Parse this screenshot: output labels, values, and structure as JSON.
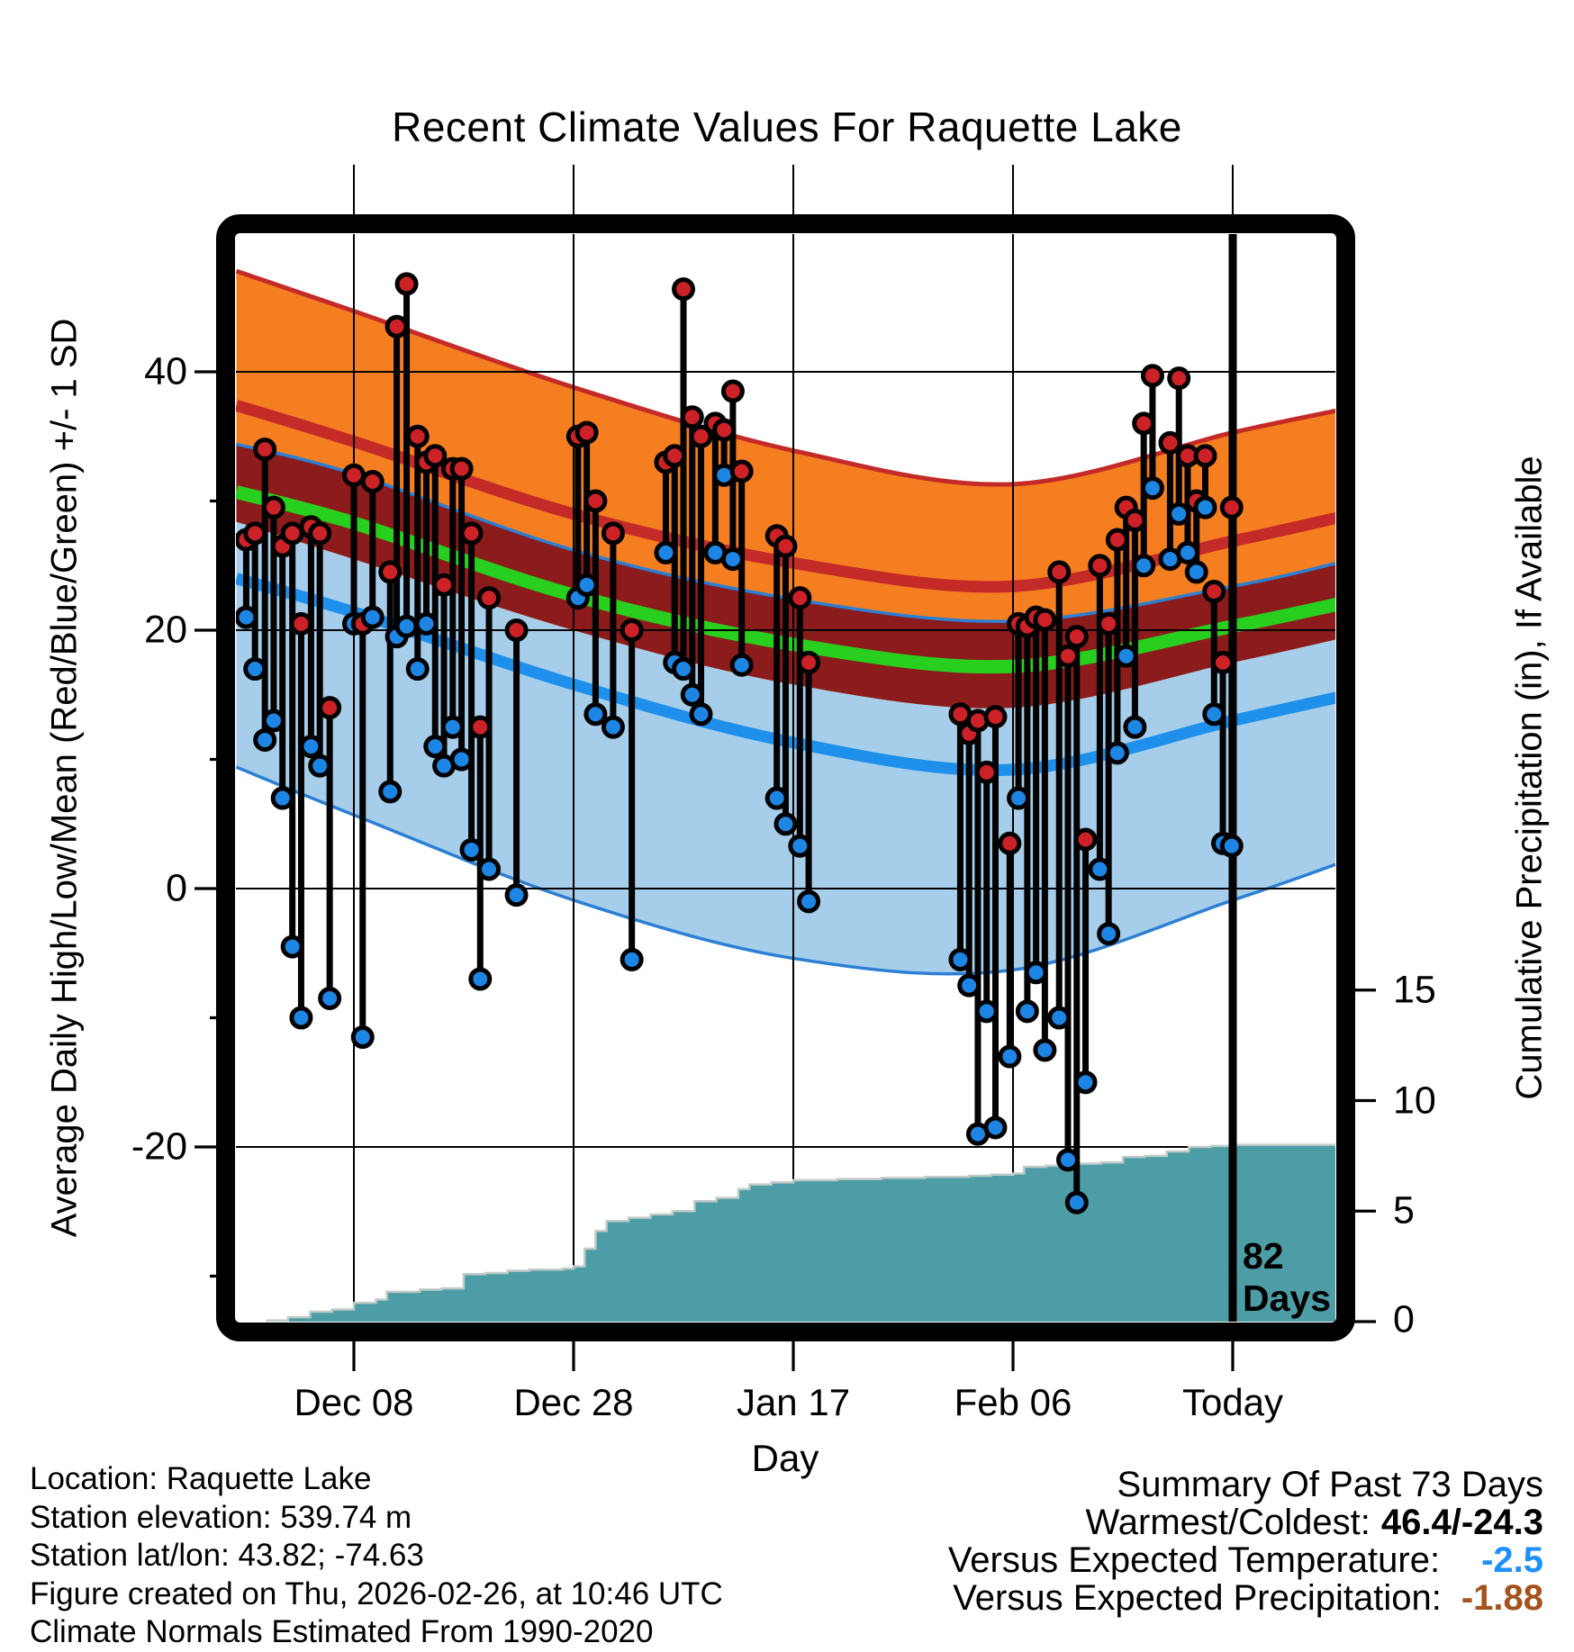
{
  "title": "Recent Climate Values For Raquette Lake",
  "axes": {
    "left_label": "Average Daily High/Low/Mean (Red/Blue/Green) +/- 1 SD",
    "right_label": "Cumulative Precipitation (in), If Available",
    "x_label": "Day",
    "x_ticks": [
      "Dec 08",
      "Dec 28",
      "Jan 17",
      "Feb 06",
      "Today"
    ],
    "left_ticks": [
      "40",
      "20",
      "0",
      "-20"
    ],
    "right_ticks": [
      "15",
      "10",
      "5",
      "0"
    ]
  },
  "annotations": {
    "days_count": "82",
    "days_word": "Days"
  },
  "footer": {
    "lines": [
      "Location: Raquette Lake",
      "Station elevation: 539.74 m",
      "Station lat/lon: 43.82; -74.63",
      "Figure created on Thu, 2026-02-26, at 10:46 UTC",
      "Climate Normals Estimated From 1990-2020"
    ]
  },
  "summary": {
    "title": "Summary Of Past 73 Days",
    "warmest_label": "Warmest/Coldest:",
    "warmest_value": "46.4/-24.3",
    "temp_label": "Versus Expected Temperature:",
    "temp_value": "-2.5",
    "precip_label": "Versus Expected Precipitation:",
    "precip_value": "-1.88"
  },
  "colors": {
    "orange_band": "#F57E20",
    "red_edge": "#C42A28",
    "high_mean_line": "#C42A28",
    "maroon_overlap": "#8C1B1B",
    "mean_green_line": "#28CF1F",
    "light_blue_band": "#A6CEEA",
    "blue_edge": "#2B7FD4",
    "low_mean_line": "#1E8FEA",
    "precip_fill": "#4C9DA6",
    "precip_edge": "#C2CBC8",
    "dot_high": "#CC2127",
    "dot_low": "#1D86E5",
    "stem": "#000000",
    "grid": "#000000",
    "summary_temp_value": "#1E90FF",
    "summary_precip_value": "#A5521D"
  },
  "chart_data": {
    "type": "line",
    "description": "Climate normals bands (high/low/mean +/-1 SD), daily observed high-low stems, and cumulative precipitation area. Day 0 = Dec 08; Today = day 80 (Feb 26).",
    "x_axis": {
      "label": "Day",
      "tick_days": [
        0,
        20,
        40,
        60,
        80
      ],
      "tick_labels": [
        "Dec 08",
        "Dec 28",
        "Jan 17",
        "Feb 06",
        "Today"
      ],
      "domain_days": [
        -10.7,
        89.5
      ]
    },
    "temp_axis": {
      "ticks": [
        40,
        20,
        0,
        -20
      ],
      "minor_ticks": [
        30,
        10,
        -10,
        -30
      ],
      "range_f": [
        -33.5,
        50.7
      ]
    },
    "precip_axis": {
      "ticks": [
        15,
        10,
        5,
        0
      ],
      "unit": "in"
    },
    "today_day": 80,
    "normals": {
      "anchor_days": [
        -10.7,
        0,
        20,
        40,
        60,
        80,
        89.5
      ],
      "series": [
        {
          "name": "high_plus_sd",
          "values": [
            47.8,
            44.7,
            38.8,
            33.9,
            31.3,
            35.3,
            37.0
          ]
        },
        {
          "name": "high_mean",
          "values": [
            37.4,
            34.6,
            29.0,
            25.2,
            23.4,
            26.9,
            28.7
          ]
        },
        {
          "name": "low_plus_sd",
          "values": [
            34.4,
            32.1,
            26.2,
            22.4,
            20.7,
            23.4,
            25.2
          ]
        },
        {
          "name": "mean",
          "values": [
            30.7,
            28.3,
            22.7,
            18.9,
            17.2,
            20.3,
            22.0
          ]
        },
        {
          "name": "high_minus_sd",
          "values": [
            28.4,
            25.5,
            20.0,
            15.8,
            14.0,
            17.5,
            19.3
          ]
        },
        {
          "name": "low_mean",
          "values": [
            24.0,
            21.4,
            15.8,
            11.3,
            9.2,
            13.0,
            14.8
          ]
        },
        {
          "name": "low_minus_sd",
          "values": [
            9.4,
            5.7,
            -0.9,
            -5.4,
            -6.3,
            -0.9,
            1.9
          ]
        }
      ]
    },
    "daily_stems": [
      {
        "day": -9.8,
        "high": 27.0,
        "low": 21.0
      },
      {
        "day": -9.0,
        "high": 27.5,
        "low": 17.0
      },
      {
        "day": -8.1,
        "high": 34.0,
        "low": 11.5
      },
      {
        "day": -7.3,
        "high": 29.5,
        "low": 13.0
      },
      {
        "day": -6.5,
        "high": 26.5,
        "low": 7.0
      },
      {
        "day": -5.6,
        "high": 27.5,
        "low": -4.5
      },
      {
        "day": -4.8,
        "high": 20.5,
        "low": -10.0
      },
      {
        "day": -3.9,
        "high": 28.0,
        "low": 11.0
      },
      {
        "day": -3.1,
        "high": 27.5,
        "low": 9.5
      },
      {
        "day": -2.2,
        "high": 14.0,
        "low": -8.5
      },
      {
        "day": 0.0,
        "high": 32.0,
        "low": 20.5
      },
      {
        "day": 0.8,
        "high": 20.5,
        "low": -11.5
      },
      {
        "day": 1.7,
        "high": 31.5,
        "low": 21.0
      },
      {
        "day": 3.3,
        "high": 24.5,
        "low": 7.5
      },
      {
        "day": 3.9,
        "high": 43.5,
        "low": 19.5
      },
      {
        "day": 4.8,
        "high": 46.8,
        "low": 20.3
      },
      {
        "day": 5.8,
        "high": 35.0,
        "low": 17.0
      },
      {
        "day": 6.6,
        "high": 33.0,
        "low": 20.5
      },
      {
        "day": 7.4,
        "high": 33.5,
        "low": 11.0
      },
      {
        "day": 8.2,
        "high": 23.5,
        "low": 9.5
      },
      {
        "day": 9.0,
        "high": 32.5,
        "low": 12.5
      },
      {
        "day": 9.8,
        "high": 32.5,
        "low": 10.0
      },
      {
        "day": 10.7,
        "high": 27.5,
        "low": 3.0
      },
      {
        "day": 11.5,
        "high": 12.5,
        "low": -7.0
      },
      {
        "day": 12.3,
        "high": 22.5,
        "low": 1.5
      },
      {
        "day": 14.8,
        "high": 20.0,
        "low": -0.5
      },
      {
        "day": 20.4,
        "high": 35.0,
        "low": 22.5
      },
      {
        "day": 21.2,
        "high": 35.3,
        "low": 23.5
      },
      {
        "day": 22.0,
        "high": 30.0,
        "low": 13.5
      },
      {
        "day": 23.6,
        "high": 27.5,
        "low": 12.5
      },
      {
        "day": 25.3,
        "high": 20.0,
        "low": -5.5
      },
      {
        "day": 28.4,
        "high": 33.0,
        "low": 26.0
      },
      {
        "day": 29.2,
        "high": 33.5,
        "low": 17.5
      },
      {
        "day": 30.0,
        "high": 46.4,
        "low": 17.0
      },
      {
        "day": 30.8,
        "high": 36.5,
        "low": 15.0
      },
      {
        "day": 31.6,
        "high": 35.0,
        "low": 13.5
      },
      {
        "day": 32.9,
        "high": 36.0,
        "low": 26.0
      },
      {
        "day": 33.7,
        "high": 35.5,
        "low": 32.0
      },
      {
        "day": 34.5,
        "high": 38.5,
        "low": 25.5
      },
      {
        "day": 35.3,
        "high": 32.3,
        "low": 17.3
      },
      {
        "day": 38.5,
        "high": 27.3,
        "low": 7.0
      },
      {
        "day": 39.3,
        "high": 26.5,
        "low": 5.0
      },
      {
        "day": 40.6,
        "high": 22.5,
        "low": 3.3
      },
      {
        "day": 41.4,
        "high": 17.5,
        "low": -1.0
      },
      {
        "day": 55.2,
        "high": 13.5,
        "low": -5.5
      },
      {
        "day": 56.0,
        "high": 12.0,
        "low": -7.5
      },
      {
        "day": 56.8,
        "high": 13.0,
        "low": -19.0
      },
      {
        "day": 57.6,
        "high": 9.0,
        "low": -9.5
      },
      {
        "day": 58.4,
        "high": 13.3,
        "low": -18.5
      },
      {
        "day": 59.7,
        "high": 3.5,
        "low": -13.0
      },
      {
        "day": 60.5,
        "high": 20.5,
        "low": 7.0
      },
      {
        "day": 61.3,
        "high": 20.3,
        "low": -9.5
      },
      {
        "day": 62.1,
        "high": 21.0,
        "low": -6.5
      },
      {
        "day": 62.9,
        "high": 20.8,
        "low": -12.5
      },
      {
        "day": 64.2,
        "high": 24.5,
        "low": -10.0
      },
      {
        "day": 65.0,
        "high": 18.0,
        "low": -21.0
      },
      {
        "day": 65.8,
        "high": 19.5,
        "low": -24.3
      },
      {
        "day": 66.6,
        "high": 3.8,
        "low": -15.0
      },
      {
        "day": 67.9,
        "high": 25.0,
        "low": 1.5
      },
      {
        "day": 68.7,
        "high": 20.5,
        "low": -3.5
      },
      {
        "day": 69.5,
        "high": 27.0,
        "low": 10.5
      },
      {
        "day": 70.3,
        "high": 29.5,
        "low": 18.0
      },
      {
        "day": 71.1,
        "high": 28.5,
        "low": 12.5
      },
      {
        "day": 71.9,
        "high": 36.0,
        "low": 25.0
      },
      {
        "day": 72.7,
        "high": 39.7,
        "low": 31.0
      },
      {
        "day": 74.3,
        "high": 34.5,
        "low": 25.5
      },
      {
        "day": 75.1,
        "high": 39.5,
        "low": 29.0
      },
      {
        "day": 75.9,
        "high": 33.5,
        "low": 26.0
      },
      {
        "day": 76.7,
        "high": 30.0,
        "low": 24.5
      },
      {
        "day": 77.5,
        "high": 33.5,
        "low": 29.5
      },
      {
        "day": 78.3,
        "high": 23.0,
        "low": 13.5
      },
      {
        "day": 79.1,
        "high": 17.5,
        "low": 3.5
      },
      {
        "day": 79.9,
        "high": 29.5,
        "low": 3.3
      }
    ],
    "cumulative_precip": {
      "days": [
        -8,
        -6,
        -4,
        -2,
        0,
        2,
        3,
        6,
        8,
        10,
        12,
        14,
        16,
        19,
        20,
        21,
        22,
        23,
        25,
        27,
        29,
        31,
        33,
        35,
        36,
        38,
        40,
        44,
        48,
        52,
        56,
        58,
        60,
        61,
        63,
        66,
        68,
        70,
        72,
        74,
        76,
        78,
        80,
        89.5
      ],
      "inches": [
        0.05,
        0.2,
        0.45,
        0.55,
        0.85,
        1.0,
        1.35,
        1.45,
        1.5,
        2.15,
        2.2,
        2.3,
        2.35,
        2.4,
        2.5,
        3.3,
        4.1,
        4.55,
        4.7,
        4.85,
        5.0,
        5.45,
        5.6,
        6.0,
        6.2,
        6.3,
        6.4,
        6.45,
        6.5,
        6.55,
        6.6,
        6.65,
        6.7,
        7.0,
        7.05,
        7.15,
        7.2,
        7.45,
        7.5,
        7.7,
        7.9,
        7.95,
        8.0,
        8.05
      ]
    }
  }
}
